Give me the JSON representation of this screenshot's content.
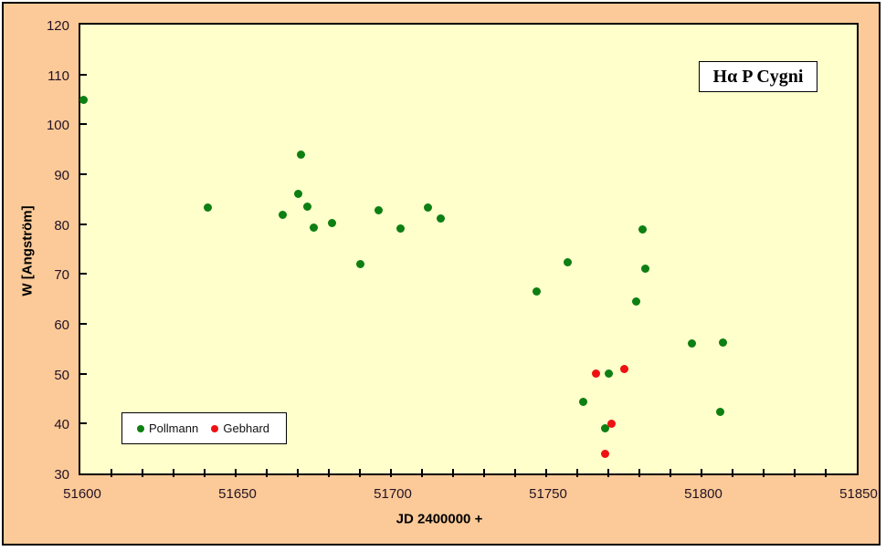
{
  "chart": {
    "title": "Hα P Cygni",
    "xlabel": "JD 2400000 +",
    "ylabel": "W [Angström]"
  },
  "colors": {
    "chart_background": "#fbca98",
    "plot_background": "#ffffcc",
    "axis": "#000000",
    "pollmann_green": "#0e7f12",
    "gebhard_red": "#ee1111"
  },
  "chart_data": {
    "type": "scatter",
    "title": "Hα P Cygni",
    "xlabel": "JD 2400000 +",
    "ylabel": "W [Angström]",
    "xlim": [
      51600,
      51850
    ],
    "ylim": [
      30,
      120
    ],
    "x_major_ticks": [
      51600,
      51650,
      51700,
      51750,
      51800,
      51850
    ],
    "x_minor_tick_step": 10,
    "y_ticks": [
      30,
      40,
      50,
      60,
      70,
      80,
      90,
      100,
      110,
      120
    ],
    "grid": false,
    "legend_position": "inside-bottom-left",
    "series": [
      {
        "name": "Pollmann",
        "color": "#0e7f12",
        "points": [
          [
            51601,
            105
          ],
          [
            51641,
            83.3
          ],
          [
            51665,
            81.8
          ],
          [
            51670,
            86
          ],
          [
            51671,
            94
          ],
          [
            51673,
            83.5
          ],
          [
            51675,
            79.3
          ],
          [
            51681,
            80.3
          ],
          [
            51690,
            72
          ],
          [
            51696,
            82.8
          ],
          [
            51703,
            79.2
          ],
          [
            51712,
            83.4
          ],
          [
            51716,
            81.2
          ],
          [
            51747,
            66.5
          ],
          [
            51757,
            72.4
          ],
          [
            51762,
            44.3
          ],
          [
            51769,
            39
          ],
          [
            51770,
            50
          ],
          [
            51779,
            64.5
          ],
          [
            51781,
            79
          ],
          [
            51782,
            71
          ],
          [
            51797,
            56
          ],
          [
            51806,
            42.4
          ],
          [
            51807,
            56.2
          ]
        ]
      },
      {
        "name": "Gebhard",
        "color": "#ee1111",
        "points": [
          [
            51766,
            50
          ],
          [
            51769,
            34
          ],
          [
            51771,
            40
          ],
          [
            51775,
            51
          ]
        ]
      }
    ]
  }
}
